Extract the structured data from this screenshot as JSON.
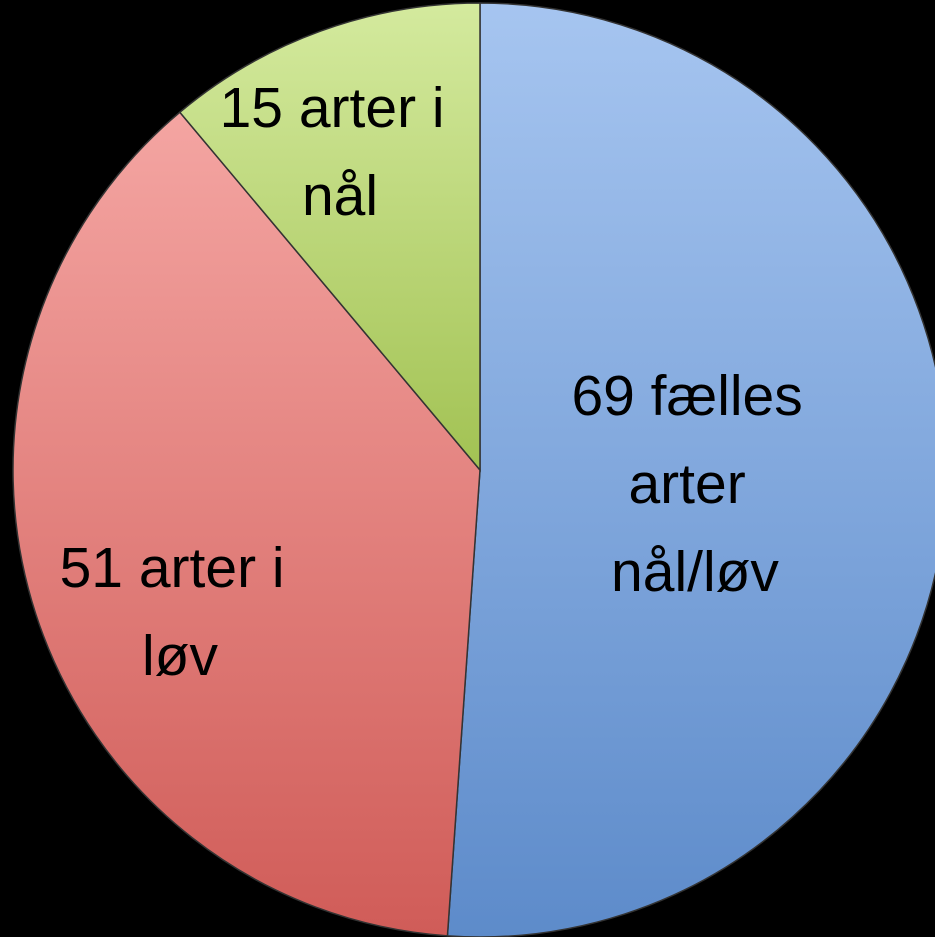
{
  "chart_data": {
    "type": "pie",
    "categories": [
      "69 fælles arter nål/løv",
      "51 arter i løv",
      "15 arter i nål"
    ],
    "values": [
      69,
      51,
      15
    ],
    "colors": [
      "#6a9ee6",
      "#ec6964",
      "#b8dc5e"
    ]
  }
}
